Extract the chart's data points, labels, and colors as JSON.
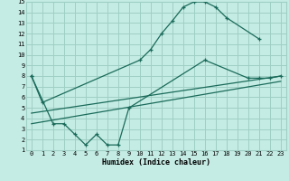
{
  "bg_color": "#c5ece4",
  "grid_color": "#9ecfc5",
  "line_color": "#1a6b5a",
  "xlabel": "Humidex (Indice chaleur)",
  "xlim": [
    -0.5,
    23.5
  ],
  "ylim": [
    1,
    15
  ],
  "xticks": [
    0,
    1,
    2,
    3,
    4,
    5,
    6,
    7,
    8,
    9,
    10,
    11,
    12,
    13,
    14,
    15,
    16,
    17,
    18,
    19,
    20,
    21,
    22,
    23
  ],
  "yticks": [
    1,
    2,
    3,
    4,
    5,
    6,
    7,
    8,
    9,
    10,
    11,
    12,
    13,
    14,
    15
  ],
  "curve1_x": [
    0,
    1,
    10,
    11,
    12,
    13,
    14,
    15,
    16,
    17,
    18,
    21
  ],
  "curve1_y": [
    8.0,
    5.5,
    9.5,
    10.5,
    12.0,
    13.2,
    14.5,
    15.0,
    15.0,
    14.5,
    13.5,
    11.5
  ],
  "curve2_x": [
    0,
    2,
    3,
    4,
    5,
    6,
    7,
    8,
    9,
    16,
    20,
    21,
    22,
    23
  ],
  "curve2_y": [
    8.0,
    3.5,
    3.5,
    2.5,
    1.5,
    2.5,
    1.5,
    1.5,
    5.0,
    9.5,
    7.8,
    7.8,
    7.8,
    8.0
  ],
  "line1_x": [
    0,
    23
  ],
  "line1_y": [
    3.5,
    7.5
  ],
  "line2_x": [
    0,
    23
  ],
  "line2_y": [
    4.5,
    8.0
  ]
}
